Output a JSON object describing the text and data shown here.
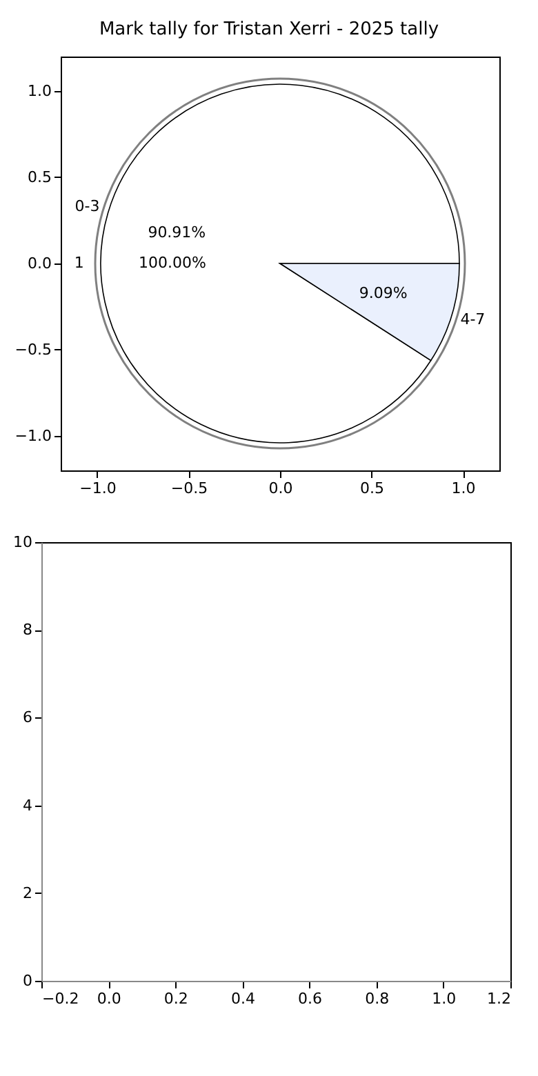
{
  "chart_data": [
    {
      "type": "scatter",
      "title": "Mark tally for Tristan Xerri - 2025 tally",
      "xlim": [
        -1.2,
        1.2
      ],
      "ylim": [
        -1.2,
        1.2
      ],
      "xticks": [
        {
          "value": -1,
          "label": "−1.0"
        },
        {
          "value": -0.5,
          "label": "−0.5"
        },
        {
          "value": 0,
          "label": "0.0"
        },
        {
          "value": 0.5,
          "label": "0.5"
        },
        {
          "value": 1,
          "label": "1.0"
        }
      ],
      "yticks": [
        {
          "value": -1,
          "label": "−1.0"
        },
        {
          "value": -0.5,
          "label": "−0.5"
        },
        {
          "value": 0,
          "label": "0.0"
        },
        {
          "value": 0.5,
          "label": "0.5"
        },
        {
          "value": 1,
          "label": "1.0"
        }
      ]
    },
    {
      "type": "pie",
      "categories": [
        "0-3",
        "4-7"
      ],
      "values": [
        90.91,
        9.09
      ],
      "colors": [
        "#ffffff",
        "#eaf0fd"
      ],
      "value_labels": [
        "90.91%",
        "9.09%"
      ]
    },
    {
      "type": "pie",
      "categories": [
        "1"
      ],
      "values": [
        100
      ],
      "colors": [
        "#ffffff"
      ],
      "value_labels": [
        "100.00%"
      ]
    },
    {
      "type": "scatter",
      "xlim": [
        -0.2,
        1.2
      ],
      "ylim": [
        0,
        10
      ],
      "xticks": [
        {
          "value": -0.2,
          "label": "−0.2"
        },
        {
          "value": 0,
          "label": "0.0"
        },
        {
          "value": 0.2,
          "label": "0.2"
        },
        {
          "value": 0.4,
          "label": "0.4"
        },
        {
          "value": 0.6,
          "label": "0.6"
        },
        {
          "value": 0.8,
          "label": "0.8"
        },
        {
          "value": 1,
          "label": "1.0"
        },
        {
          "value": 1.2,
          "label": "1.2"
        }
      ],
      "yticks": [
        0,
        2,
        4,
        6,
        8,
        10
      ]
    }
  ]
}
